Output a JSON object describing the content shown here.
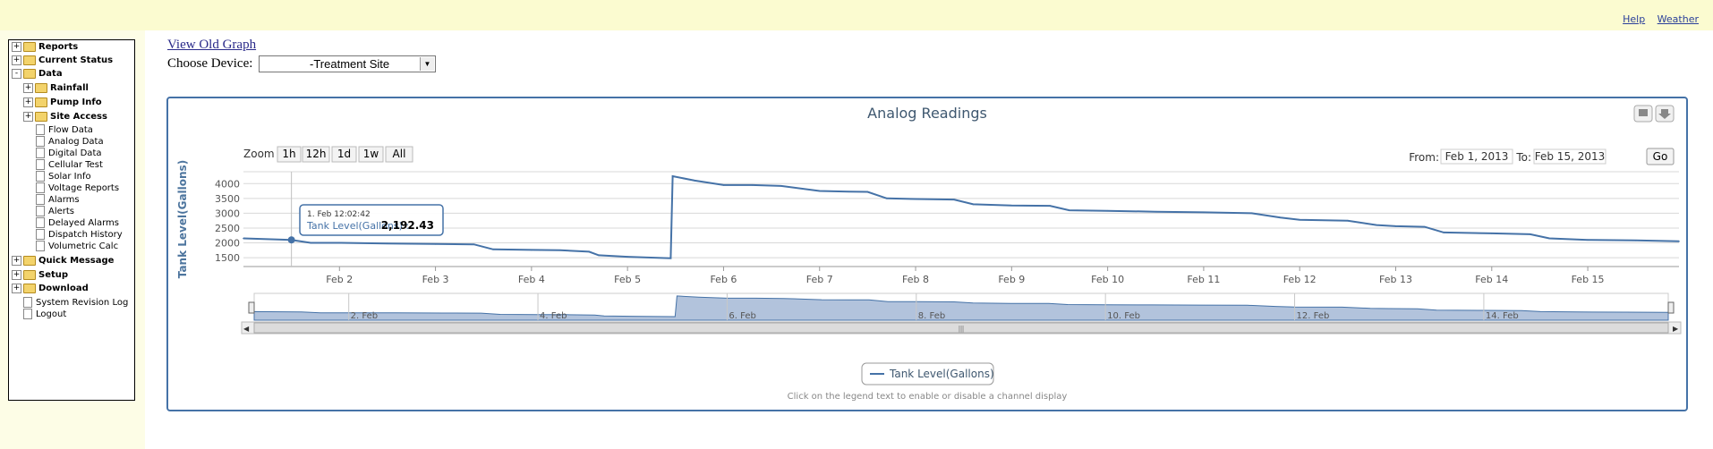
{
  "top_links": {
    "help": "Help",
    "weather": "Weather"
  },
  "nav": {
    "items": [
      {
        "label": "Reports",
        "bold": true,
        "type": "folder",
        "expander": "+"
      },
      {
        "label": "Current Status",
        "bold": true,
        "type": "folder",
        "expander": "+"
      },
      {
        "label": "Data",
        "bold": true,
        "type": "folder-open",
        "expander": "-"
      },
      {
        "label": "Rainfall",
        "bold": true,
        "type": "folder",
        "expander": "+"
      },
      {
        "label": "Pump Info",
        "bold": true,
        "type": "folder",
        "expander": "+"
      },
      {
        "label": "Site Access",
        "bold": true,
        "type": "folder",
        "expander": "+"
      },
      {
        "label": "Flow Data",
        "bold": false,
        "type": "doc"
      },
      {
        "label": "Analog Data",
        "bold": false,
        "type": "doc"
      },
      {
        "label": "Digital Data",
        "bold": false,
        "type": "doc"
      },
      {
        "label": "Cellular Test",
        "bold": false,
        "type": "doc"
      },
      {
        "label": "Solar Info",
        "bold": false,
        "type": "doc"
      },
      {
        "label": "Voltage Reports",
        "bold": false,
        "type": "doc"
      },
      {
        "label": "Alarms",
        "bold": false,
        "type": "doc"
      },
      {
        "label": "Alerts",
        "bold": false,
        "type": "doc"
      },
      {
        "label": "Delayed Alarms",
        "bold": false,
        "type": "doc"
      },
      {
        "label": "Dispatch History",
        "bold": false,
        "type": "doc"
      },
      {
        "label": "Volumetric Calc",
        "bold": false,
        "type": "doc"
      },
      {
        "label": "Quick Message",
        "bold": true,
        "type": "folder",
        "expander": "+"
      },
      {
        "label": "Setup",
        "bold": true,
        "type": "folder",
        "expander": "+"
      },
      {
        "label": "Download",
        "bold": true,
        "type": "folder",
        "expander": "+"
      },
      {
        "label": "System Revision Log",
        "bold": false,
        "type": "doc"
      },
      {
        "label": "Logout",
        "bold": false,
        "type": "doc"
      }
    ]
  },
  "view_old_graph": "View Old Graph",
  "choose_device": {
    "label": "Choose Device:",
    "value": "-Treatment Site"
  },
  "chart_ui": {
    "zoom_label": "Zoom",
    "zoom_buttons": [
      "1h",
      "12h",
      "1d",
      "1w",
      "All"
    ],
    "from_label": "From:",
    "from_value": "Feb 1, 2013",
    "to_label": "To:",
    "to_value": "Feb 15, 2013",
    "go_label": "Go",
    "tooltip_time": "1. Feb 12:02:42",
    "tooltip_series": "Tank Level(Gallons) :",
    "tooltip_value": "2,192.43",
    "legend_label": "Tank Level(Gallons)",
    "caption": "Click on the legend text to enable or disable a channel display",
    "navigator_ticks": [
      "2. Feb",
      "4. Feb",
      "6. Feb",
      "8. Feb",
      "10. Feb",
      "12. Feb",
      "14. Feb"
    ],
    "navigator_tick_days": [
      2,
      4,
      6,
      8,
      10,
      12,
      14
    ],
    "colors": {
      "series": "#4572a7",
      "navigator_fill": "#b2c3dc",
      "border": "#4572a7"
    }
  },
  "chart_data": {
    "type": "line",
    "title": "Analog Readings",
    "ylabel": "Tank Level(Gallons)",
    "xlabel": "",
    "x_unit": "day of Feb 2013",
    "ylim": [
      1200,
      4400
    ],
    "yticks": [
      1500,
      2000,
      2500,
      3000,
      3500,
      4000
    ],
    "xticks": [
      "Feb 2",
      "Feb 3",
      "Feb 4",
      "Feb 5",
      "Feb 6",
      "Feb 7",
      "Feb 8",
      "Feb 9",
      "Feb 10",
      "Feb 11",
      "Feb 12",
      "Feb 13",
      "Feb 14",
      "Feb 15"
    ],
    "xtick_days": [
      2,
      3,
      4,
      5,
      6,
      7,
      8,
      9,
      10,
      11,
      12,
      13,
      14,
      15
    ],
    "xlim": [
      1.0,
      15.95
    ],
    "grid": true,
    "legend": "bottom-center",
    "series": [
      {
        "name": "Tank Level(Gallons)",
        "x": [
          1.0,
          1.5,
          1.7,
          2.0,
          2.5,
          3.0,
          3.4,
          3.6,
          4.0,
          4.3,
          4.6,
          4.7,
          5.0,
          5.45,
          5.47,
          5.7,
          6.0,
          6.3,
          6.6,
          7.0,
          7.3,
          7.5,
          7.7,
          8.0,
          8.4,
          8.6,
          9.0,
          9.4,
          9.6,
          10.0,
          10.5,
          11.0,
          11.5,
          11.8,
          12.0,
          12.5,
          12.8,
          13.0,
          13.3,
          13.5,
          14.0,
          14.4,
          14.6,
          15.0,
          15.5,
          15.95
        ],
        "values": [
          2150,
          2100,
          2000,
          2000,
          1980,
          1960,
          1950,
          1780,
          1760,
          1750,
          1700,
          1580,
          1530,
          1480,
          4250,
          4100,
          3950,
          3950,
          3920,
          3750,
          3730,
          3720,
          3500,
          3480,
          3460,
          3300,
          3260,
          3250,
          3100,
          3080,
          3050,
          3030,
          3000,
          2850,
          2780,
          2750,
          2600,
          2560,
          2540,
          2350,
          2320,
          2290,
          2150,
          2100,
          2080,
          2050
        ]
      }
    ]
  }
}
